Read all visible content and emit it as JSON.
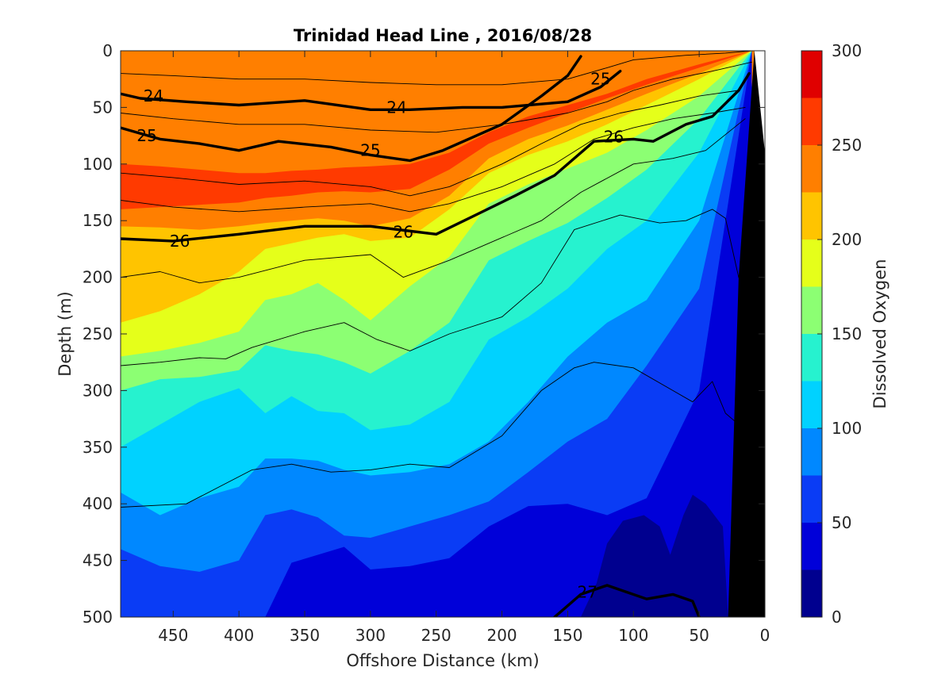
{
  "chart_data": {
    "type": "contour",
    "title": "Trinidad Head Line , 2016/08/28",
    "xlabel": "Offshore Distance (km)",
    "ylabel": "Depth (m)",
    "colorbar_label": "Dissolved Oxygen",
    "x_axis": {
      "range": [
        490,
        0
      ],
      "ticks": [
        450,
        400,
        350,
        300,
        250,
        200,
        150,
        100,
        50,
        0
      ],
      "reversed": true
    },
    "y_axis": {
      "range": [
        0,
        500
      ],
      "ticks": [
        0,
        50,
        100,
        150,
        200,
        250,
        300,
        350,
        400,
        450,
        500
      ],
      "reversed": true
    },
    "colorbar": {
      "range": [
        0,
        300
      ],
      "ticks": [
        0,
        50,
        100,
        150,
        200,
        250,
        300
      ],
      "levels": [
        0,
        25,
        50,
        75,
        100,
        125,
        150,
        175,
        200,
        225,
        250,
        275,
        300
      ],
      "colors": [
        "#00008f",
        "#0000d9",
        "#0a3cf5",
        "#0088ff",
        "#00d2ff",
        "#26f2cf",
        "#8cff73",
        "#e5ff1a",
        "#ffc400",
        "#ff7f00",
        "#ff3a00",
        "#e00000"
      ]
    },
    "oxygen_zones": [
      {
        "value": 240,
        "depth": [
          35,
          35,
          38,
          40,
          38,
          36,
          40,
          45,
          40,
          38,
          35,
          30,
          20,
          12,
          8,
          5,
          2,
          0
        ]
      },
      {
        "value": 262,
        "depth": [
          100,
          102,
          105,
          108,
          108,
          106,
          105,
          103,
          102,
          100,
          90,
          72,
          58,
          48,
          38,
          25,
          12,
          0
        ]
      },
      {
        "value": 238,
        "depth": [
          140,
          138,
          136,
          134,
          130,
          128,
          125,
          124,
          125,
          122,
          105,
          82,
          68,
          55,
          42,
          30,
          15,
          0
        ]
      },
      {
        "value": 212,
        "depth": [
          155,
          156,
          158,
          155,
          152,
          150,
          148,
          150,
          155,
          148,
          128,
          95,
          78,
          66,
          52,
          38,
          20,
          0
        ]
      },
      {
        "value": 190,
        "depth": [
          240,
          230,
          215,
          195,
          175,
          170,
          165,
          162,
          168,
          165,
          140,
          108,
          92,
          80,
          65,
          48,
          25,
          0
        ]
      },
      {
        "value": 162,
        "depth": [
          270,
          265,
          258,
          248,
          220,
          215,
          205,
          220,
          238,
          208,
          182,
          135,
          118,
          104,
          90,
          70,
          40,
          0
        ]
      },
      {
        "value": 138,
        "depth": [
          300,
          290,
          288,
          282,
          260,
          265,
          268,
          275,
          285,
          265,
          240,
          185,
          168,
          152,
          130,
          105,
          60,
          0
        ]
      },
      {
        "value": 112,
        "depth": [
          350,
          330,
          310,
          298,
          320,
          305,
          318,
          320,
          335,
          330,
          310,
          255,
          235,
          210,
          175,
          150,
          90,
          0
        ]
      },
      {
        "value": 88,
        "depth": [
          390,
          410,
          395,
          385,
          360,
          360,
          362,
          370,
          375,
          372,
          365,
          345,
          310,
          270,
          240,
          220,
          150,
          0
        ]
      },
      {
        "value": 62,
        "depth": [
          440,
          455,
          460,
          450,
          410,
          405,
          412,
          428,
          430,
          420,
          410,
          398,
          372,
          345,
          325,
          278,
          210,
          0
        ]
      },
      {
        "value": 38,
        "depth": [
          500,
          500,
          500,
          500,
          500,
          452,
          445,
          438,
          458,
          455,
          448,
          420,
          402,
          400,
          410,
          395,
          300,
          0
        ]
      }
    ],
    "zone_x": [
      490,
      460,
      430,
      400,
      380,
      360,
      340,
      320,
      300,
      270,
      240,
      210,
      180,
      150,
      120,
      90,
      50,
      10
    ],
    "deep_zone": {
      "value": 12,
      "outline": [
        [
          140,
          500
        ],
        [
          128,
          470
        ],
        [
          120,
          435
        ],
        [
          108,
          415
        ],
        [
          92,
          410
        ],
        [
          80,
          420
        ],
        [
          72,
          445
        ],
        [
          62,
          410
        ],
        [
          55,
          392
        ],
        [
          45,
          400
        ],
        [
          32,
          420
        ],
        [
          28,
          500
        ]
      ]
    },
    "density_contours": [
      {
        "label": "24",
        "bold": true,
        "x": [
          490,
          475,
          440,
          400,
          350,
          300,
          270,
          230,
          200,
          150,
          125,
          110
        ],
        "y": [
          38,
          42,
          45,
          48,
          44,
          52,
          52,
          50,
          50,
          45,
          32,
          18
        ],
        "label_at": [
          [
            465,
            40
          ],
          [
            280,
            50
          ]
        ]
      },
      {
        "label": "25",
        "bold": true,
        "x": [
          490,
          460,
          430,
          400,
          370,
          330,
          300,
          270,
          245,
          200,
          170,
          150,
          140
        ],
        "y": [
          68,
          78,
          82,
          88,
          80,
          85,
          92,
          97,
          88,
          65,
          40,
          22,
          5
        ],
        "label_at": [
          [
            470,
            75
          ],
          [
            300,
            88
          ],
          [
            125,
            25
          ]
        ]
      },
      {
        "label": "26",
        "bold": true,
        "x": [
          490,
          450,
          400,
          350,
          300,
          250,
          220,
          190,
          160,
          130,
          100,
          85,
          60,
          40,
          20,
          12
        ],
        "y": [
          166,
          168,
          162,
          155,
          155,
          162,
          145,
          128,
          110,
          80,
          78,
          80,
          65,
          58,
          35,
          20
        ],
        "label_at": [
          [
            445,
            168
          ],
          [
            275,
            160
          ],
          [
            115,
            76
          ]
        ]
      },
      {
        "label": "27",
        "bold": true,
        "x": [
          160,
          140,
          120,
          90,
          70,
          55,
          50
        ],
        "y": [
          500,
          480,
          472,
          484,
          480,
          486,
          500
        ],
        "label_at": [
          [
            135,
            478
          ]
        ]
      },
      {
        "label": "",
        "bold": false,
        "x": [
          490,
          450,
          400,
          350,
          300,
          250,
          200,
          150,
          120,
          100,
          60,
          30,
          10
        ],
        "y": [
          20,
          22,
          25,
          25,
          28,
          30,
          30,
          25,
          15,
          8,
          4,
          2,
          0
        ]
      },
      {
        "label": "",
        "bold": false,
        "x": [
          490,
          450,
          400,
          350,
          300,
          250,
          200,
          150,
          120,
          100,
          70,
          40,
          10
        ],
        "y": [
          55,
          60,
          65,
          65,
          70,
          72,
          65,
          55,
          45,
          35,
          25,
          18,
          10
        ]
      },
      {
        "label": "",
        "bold": false,
        "x": [
          490,
          450,
          400,
          350,
          300,
          270,
          240,
          200,
          170,
          140,
          110,
          80,
          50,
          20
        ],
        "y": [
          108,
          112,
          118,
          115,
          120,
          128,
          120,
          100,
          82,
          65,
          55,
          48,
          40,
          35
        ]
      },
      {
        "label": "",
        "bold": false,
        "x": [
          490,
          450,
          400,
          350,
          300,
          270,
          240,
          200,
          160,
          130,
          100,
          70,
          40,
          15
        ],
        "y": [
          132,
          138,
          142,
          138,
          135,
          142,
          135,
          120,
          100,
          78,
          68,
          60,
          55,
          50
        ]
      },
      {
        "label": "",
        "bold": false,
        "x": [
          490,
          460,
          430,
          400,
          350,
          300,
          275,
          240,
          200,
          170,
          140,
          100,
          70,
          45,
          15
        ],
        "y": [
          200,
          195,
          205,
          200,
          185,
          180,
          200,
          185,
          165,
          150,
          125,
          100,
          95,
          88,
          60
        ]
      },
      {
        "label": "",
        "bold": false,
        "x": [
          490,
          460,
          430,
          410,
          390,
          350,
          320,
          295,
          270,
          240,
          200,
          170,
          145,
          110,
          80,
          60,
          40,
          30,
          20,
          15
        ],
        "y": [
          278,
          275,
          271,
          272,
          262,
          248,
          240,
          255,
          265,
          250,
          235,
          205,
          158,
          145,
          152,
          150,
          140,
          148,
          200,
          215
        ]
      },
      {
        "label": "",
        "bold": false,
        "x": [
          490,
          440,
          410,
          390,
          360,
          330,
          300,
          270,
          240,
          200,
          170,
          145,
          130,
          100,
          70,
          55,
          40,
          30,
          20,
          15
        ],
        "y": [
          403,
          400,
          382,
          370,
          365,
          372,
          370,
          365,
          368,
          340,
          300,
          280,
          275,
          280,
          300,
          310,
          292,
          320,
          330,
          380
        ]
      }
    ],
    "bathymetry": {
      "x": [
        0,
        8,
        20,
        28,
        0
      ],
      "y": [
        0,
        0,
        200,
        500,
        500
      ]
    },
    "coast": {
      "x": [
        0,
        8,
        0
      ],
      "y": [
        0,
        0,
        90
      ]
    }
  }
}
